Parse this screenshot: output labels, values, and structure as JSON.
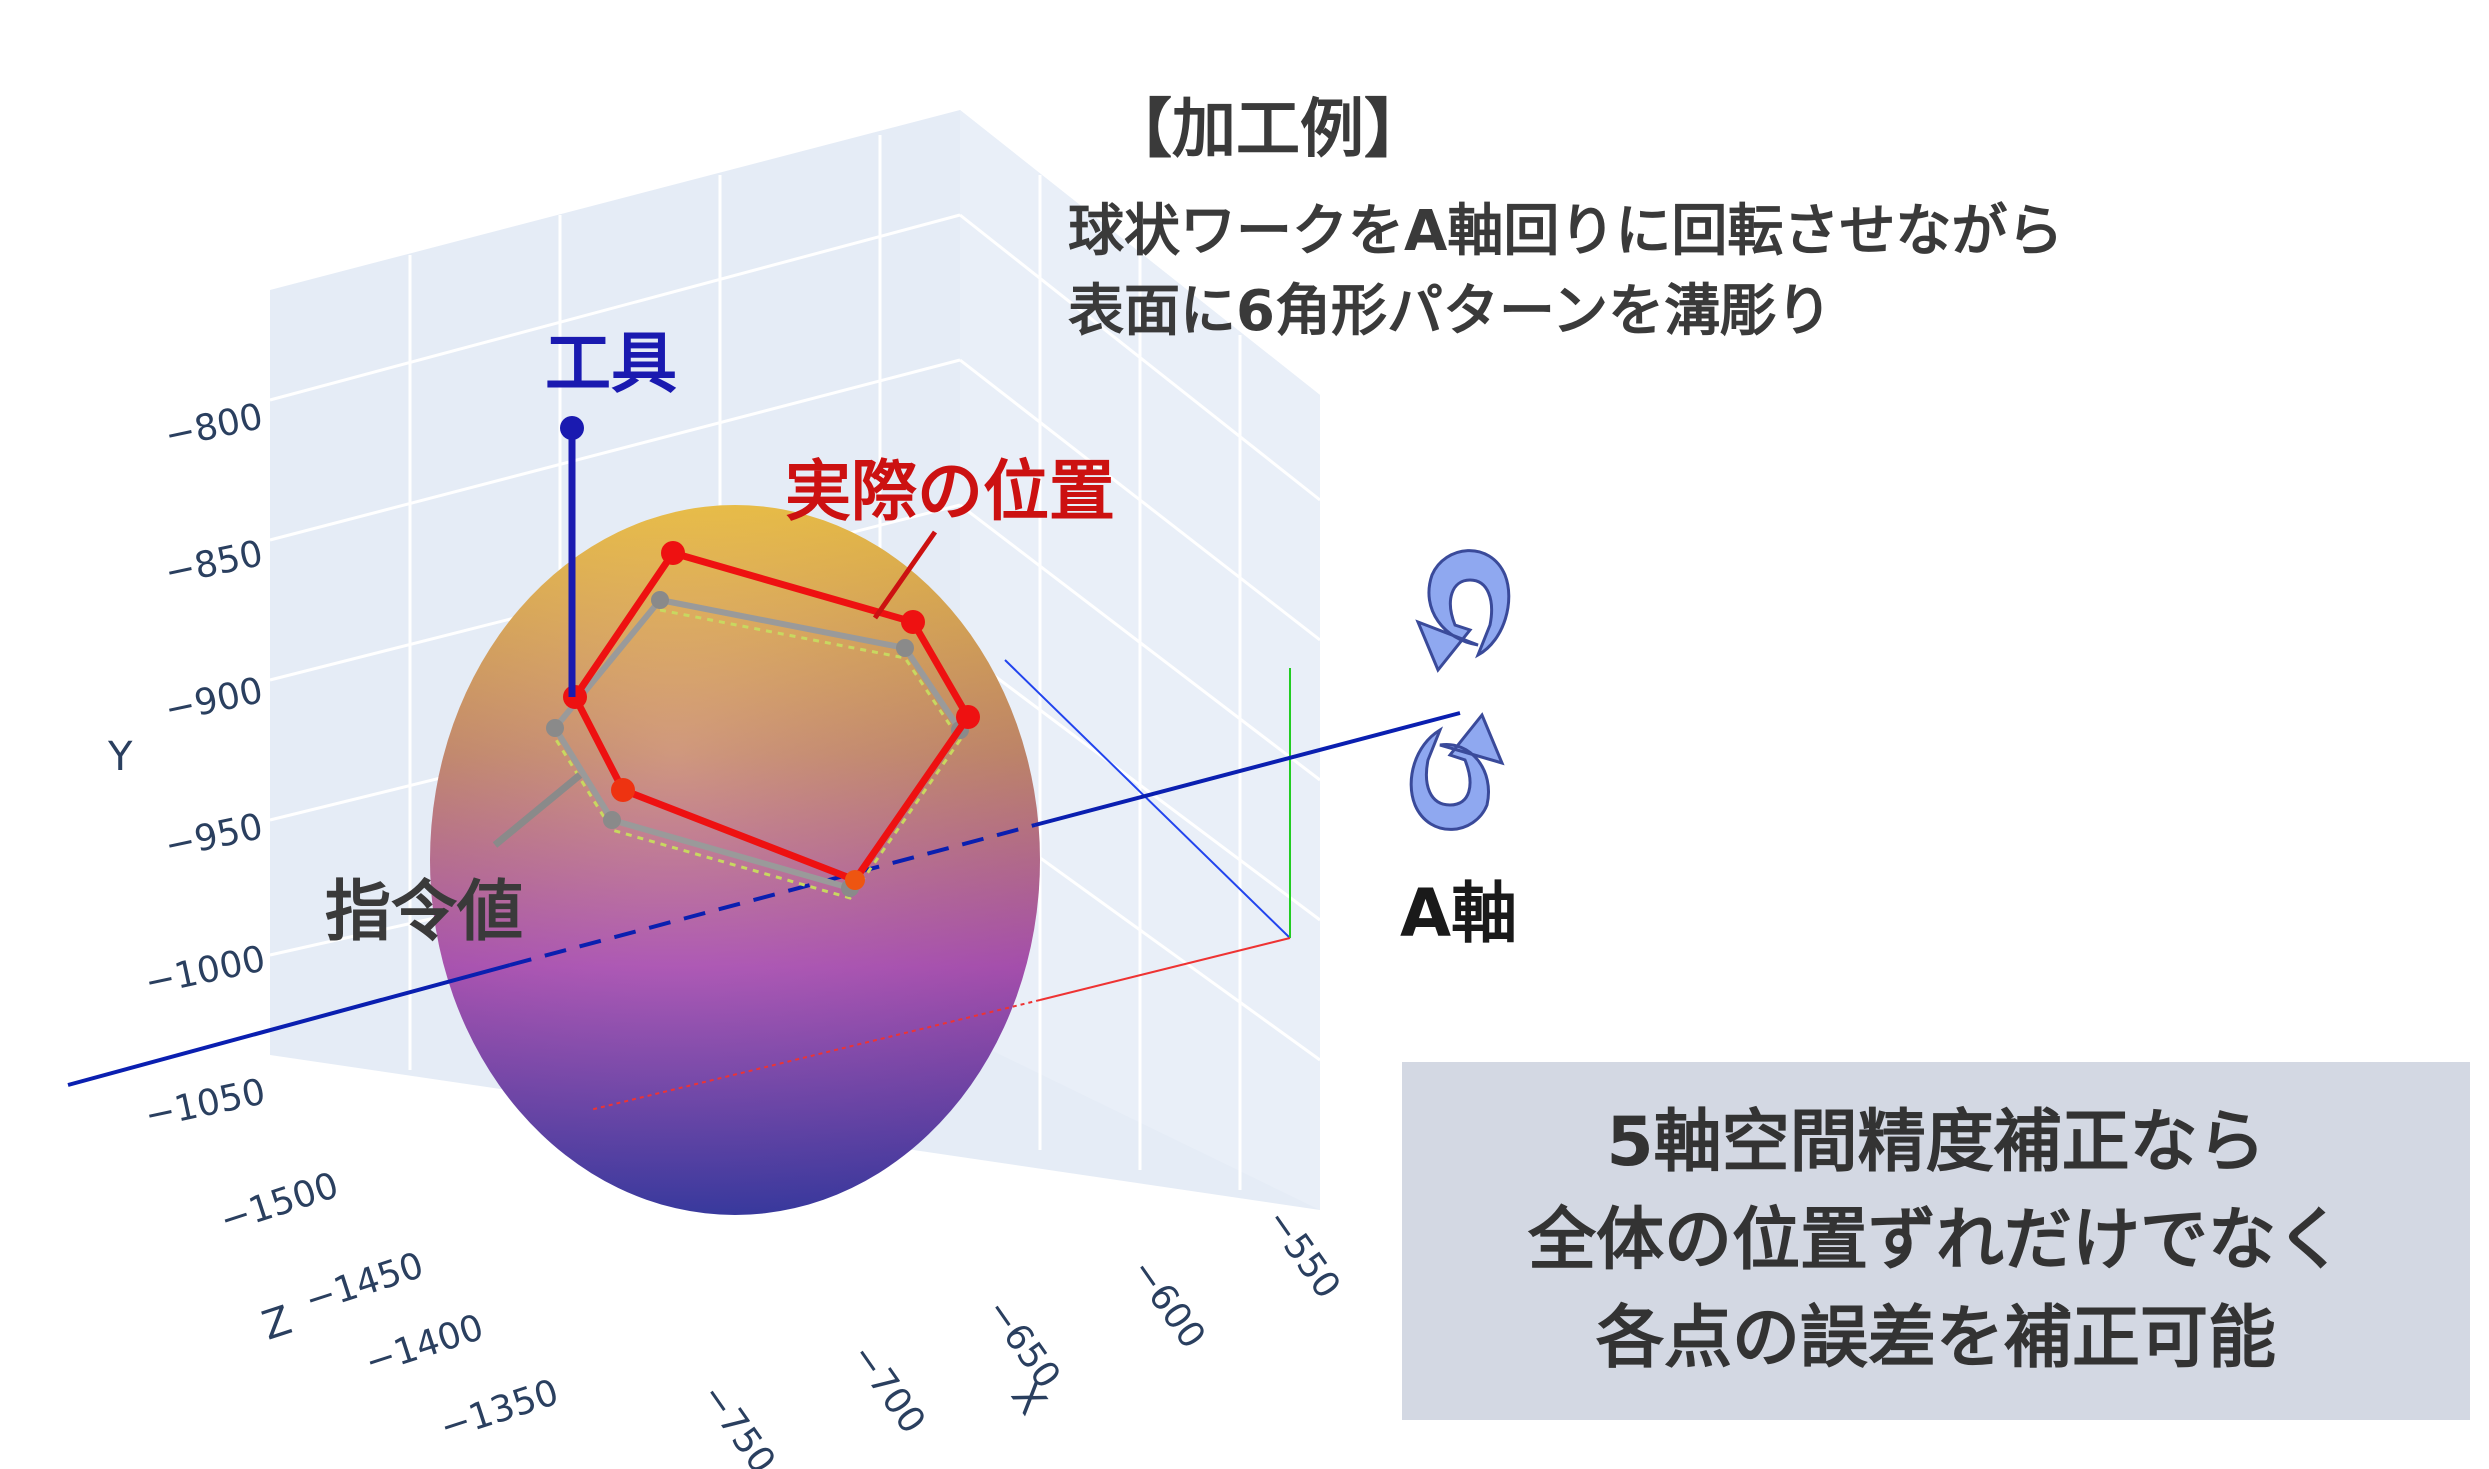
{
  "annotation": {
    "heading": "【加工例】",
    "description_lines": [
      "球状ワークをA軸回りに回転させながら",
      "表面に6角形パターンを溝彫り"
    ]
  },
  "labels": {
    "tool": "工具",
    "actual_position": "実際の位置",
    "command_value": "指令値",
    "a_axis": "A軸"
  },
  "callout": {
    "lines": [
      "5軸空間精度補正なら",
      "全体の位置ずれだけでなく",
      "各点の誤差を補正可能"
    ]
  },
  "plot": {
    "axis_titles": {
      "x": "X",
      "y": "Y",
      "z": "Z"
    },
    "y_ticks": [
      "−800",
      "−850",
      "−900",
      "−950",
      "−1000",
      "−1050"
    ],
    "z_ticks": [
      "−1500",
      "−1450",
      "−1400",
      "−1350"
    ],
    "x_ticks": [
      "−750",
      "−700",
      "−650",
      "−600",
      "−550"
    ]
  },
  "colors": {
    "tool": "#1a1ab0",
    "actual": "#ee1111",
    "command": "#8a8a8a",
    "a_axis_line": "#0a1fb0",
    "rotation_arrow": "#8fa8f0",
    "plot_background": "#e5ecf6",
    "callout_background": "#d3d8e3"
  }
}
